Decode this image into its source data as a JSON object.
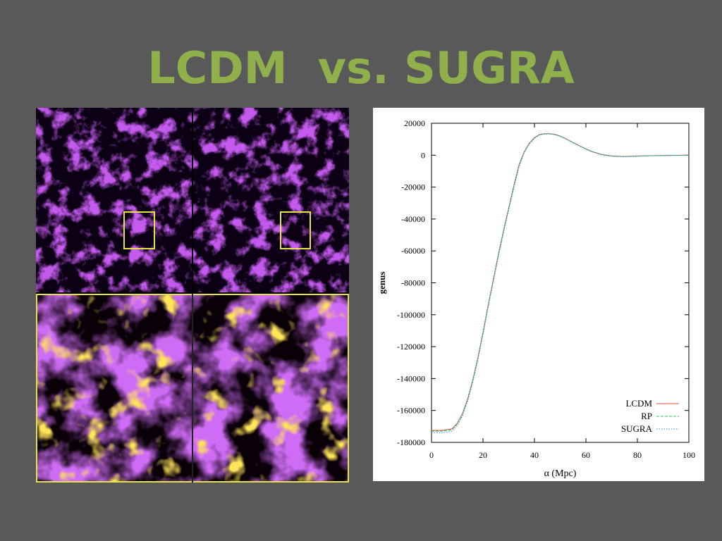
{
  "slide": {
    "title": "LCDM  vs. SUGRA"
  },
  "colors": {
    "background": "#595959",
    "title": "#8fb04a",
    "zoom_box": "#e6e24a",
    "lcdm": "#e8453c",
    "rp": "#22c55e",
    "sugra": "#3b82f6"
  },
  "simulation_image": {
    "description_icon": "cosmic-web-density-maps"
  },
  "chart_data": {
    "type": "line",
    "xlabel": "α (Mpc)",
    "ylabel": "genus",
    "xlim": [
      0,
      100
    ],
    "ylim": [
      -180000,
      20000
    ],
    "xticks": [
      0,
      20,
      40,
      60,
      80,
      100
    ],
    "yticks": [
      20000,
      0,
      -20000,
      -40000,
      -60000,
      -80000,
      -100000,
      -120000,
      -140000,
      -160000,
      -180000
    ],
    "legend_position": "bottom-right",
    "series": [
      {
        "name": "LCDM",
        "style": "solid",
        "x": [
          0,
          4,
          8,
          10,
          12,
          14,
          16,
          18,
          20,
          22,
          24,
          26,
          28,
          30,
          32,
          34,
          36,
          38,
          40,
          42,
          44,
          46,
          48,
          50,
          52,
          55,
          58,
          62,
          66,
          70,
          75,
          80,
          85,
          90,
          95,
          100
        ],
        "y": [
          -172500,
          -172500,
          -171500,
          -168000,
          -162000,
          -153000,
          -141000,
          -127000,
          -111000,
          -94000,
          -78000,
          -62000,
          -47000,
          -33000,
          -19000,
          -6000,
          2000,
          7500,
          11000,
          13000,
          13500,
          13500,
          13000,
          12000,
          10500,
          8000,
          5500,
          2500,
          500,
          -500,
          -800,
          -500,
          -300,
          -200,
          -100,
          0
        ]
      },
      {
        "name": "RP",
        "style": "dashed",
        "x": [
          0,
          4,
          8,
          10,
          12,
          14,
          16,
          18,
          20,
          22,
          24,
          26,
          28,
          30,
          32,
          34,
          36,
          38,
          40,
          42,
          44,
          46,
          48,
          50,
          52,
          55,
          58,
          62,
          66,
          70,
          75,
          80,
          85,
          90,
          95,
          100
        ],
        "y": [
          -173000,
          -173000,
          -172000,
          -168500,
          -162500,
          -153500,
          -141500,
          -127500,
          -111500,
          -94500,
          -78500,
          -62500,
          -47500,
          -33500,
          -19500,
          -6500,
          1800,
          7300,
          10800,
          12900,
          13400,
          13400,
          12900,
          11900,
          10400,
          7900,
          5400,
          2400,
          400,
          -600,
          -900,
          -600,
          -300,
          -200,
          -100,
          0
        ]
      },
      {
        "name": "SUGRA",
        "style": "dotted",
        "x": [
          0,
          4,
          8,
          10,
          12,
          14,
          16,
          18,
          20,
          22,
          24,
          26,
          28,
          30,
          32,
          34,
          36,
          38,
          40,
          42,
          44,
          46,
          48,
          50,
          52,
          55,
          58,
          62,
          66,
          70,
          75,
          80,
          85,
          90,
          95,
          100
        ],
        "y": [
          -174000,
          -174000,
          -173000,
          -169500,
          -163500,
          -154500,
          -142500,
          -128500,
          -112500,
          -95500,
          -79500,
          -63500,
          -48500,
          -34500,
          -20500,
          -7500,
          1500,
          7000,
          10500,
          12700,
          13200,
          13300,
          12800,
          11800,
          10300,
          7800,
          5300,
          2300,
          300,
          -700,
          -1000,
          -700,
          -400,
          -300,
          -200,
          -100
        ]
      }
    ]
  }
}
